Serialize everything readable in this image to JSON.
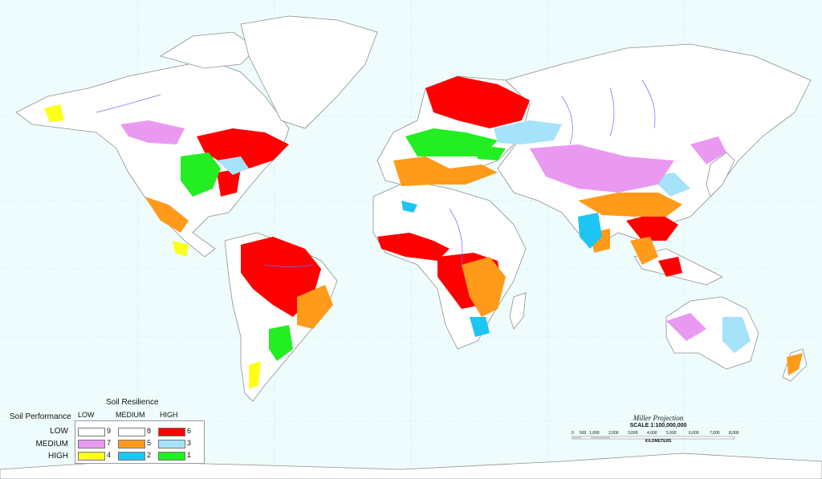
{
  "legend": {
    "title": "Soil Resilience",
    "performance_title": "Soil Performance",
    "columns": [
      "LOW",
      "MEDIUM",
      "HIGH"
    ],
    "rows": [
      "LOW",
      "MEDIUM",
      "HIGH"
    ],
    "cells": [
      {
        "num": "9",
        "color": "#ffffff"
      },
      {
        "num": "8",
        "color": "#ffffff"
      },
      {
        "num": "6",
        "color": "#ff0000"
      },
      {
        "num": "7",
        "color": "#e99af0"
      },
      {
        "num": "5",
        "color": "#ff9a1a"
      },
      {
        "num": "3",
        "color": "#a6e3fb"
      },
      {
        "num": "4",
        "color": "#ffff1a"
      },
      {
        "num": "2",
        "color": "#1ec5f2"
      },
      {
        "num": "1",
        "color": "#22ee22"
      }
    ]
  },
  "projection": "Miller Projection",
  "scale": "SCALE 1:100,000,000",
  "km_ticks": [
    "0",
    "500",
    "1,000",
    "2,000",
    "3,000",
    "4,000",
    "5,000",
    "6,000",
    "7,000",
    "8,000"
  ],
  "km_label": "KILOMETERS",
  "colors": {
    "ocean": "#eefcfd",
    "land": "#ffffff",
    "border": "#9b9b9b",
    "river": "#6c6cff",
    "graticule": "#b7e8ea"
  }
}
